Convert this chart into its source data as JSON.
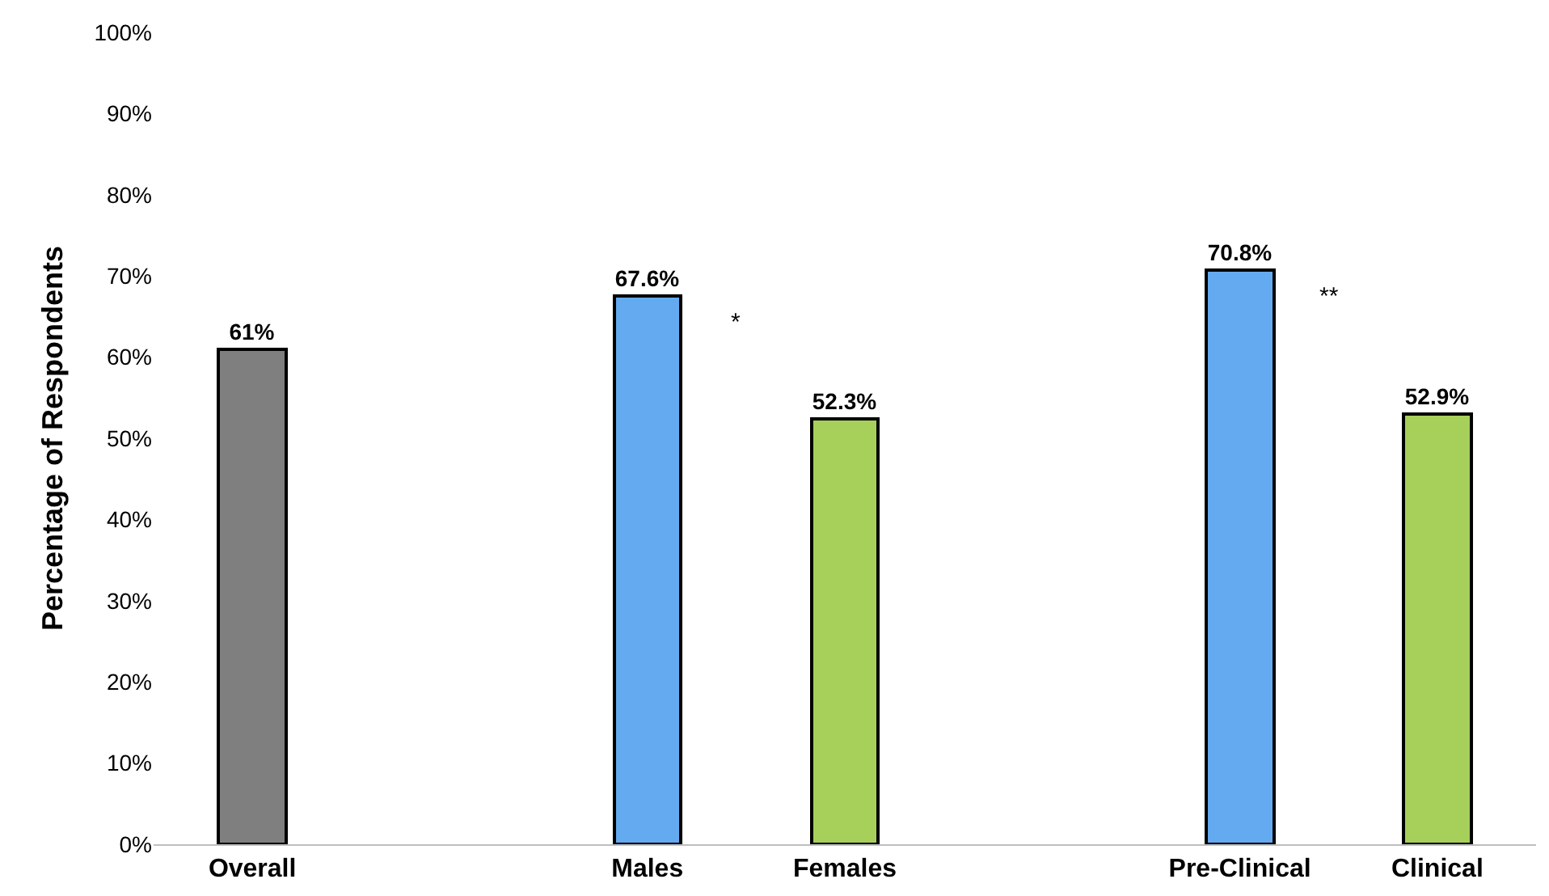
{
  "chart_data": {
    "type": "bar",
    "ylabel": "Percentage of Respondents",
    "categories": [
      "Overall",
      null,
      "Males",
      "Females",
      null,
      "Pre-Clinical",
      "Clinical"
    ],
    "values": [
      61,
      null,
      67.6,
      52.3,
      null,
      70.8,
      52.9
    ],
    "colors": [
      "#7f7f7f",
      null,
      "#63aaf0",
      "#a6d05a",
      null,
      "#63aaf0",
      "#a6d05a"
    ],
    "value_labels": [
      "61%",
      null,
      "67.6%",
      "52.3%",
      null,
      "70.8%",
      "52.9%"
    ],
    "annotations": [
      "*",
      "**"
    ],
    "ylim": [
      0,
      100
    ],
    "yticks": [
      {
        "value": 0,
        "label": "0%"
      },
      {
        "value": 10,
        "label": "10%"
      },
      {
        "value": 20,
        "label": "20%"
      },
      {
        "value": 30,
        "label": "30%"
      },
      {
        "value": 40,
        "label": "40%"
      },
      {
        "value": 50,
        "label": "50%"
      },
      {
        "value": 60,
        "label": "60%"
      },
      {
        "value": 70,
        "label": "70%"
      },
      {
        "value": 80,
        "label": "80%"
      },
      {
        "value": 90,
        "label": "90%"
      },
      {
        "value": 100,
        "label": "100%"
      }
    ],
    "grid": false
  }
}
